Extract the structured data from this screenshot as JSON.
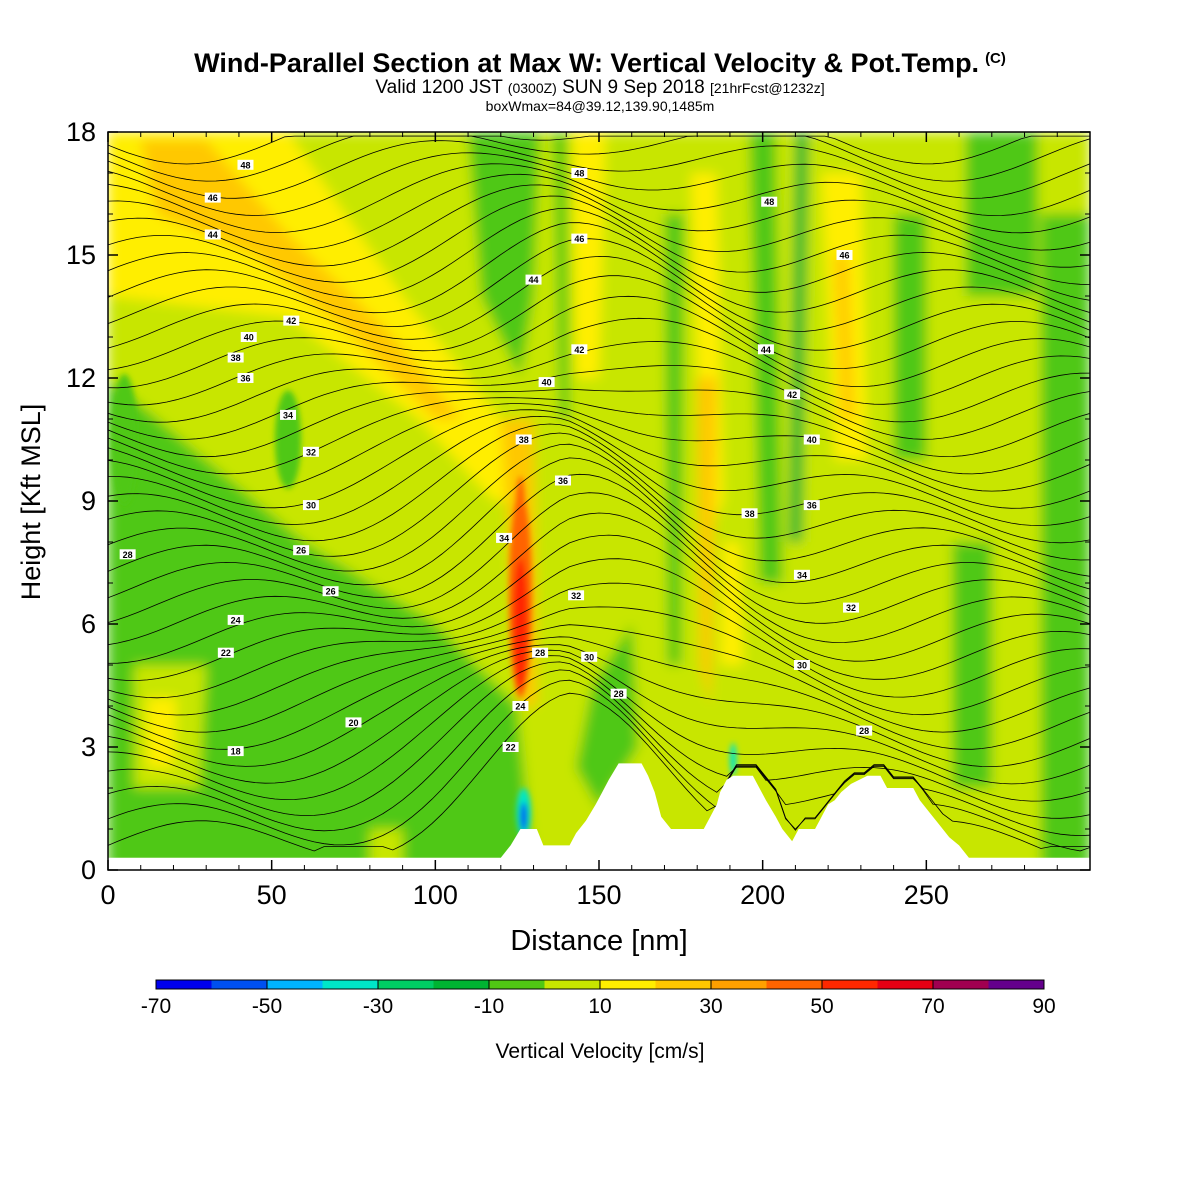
{
  "title": {
    "main": "Wind-Parallel Section at Max W: Vertical Velocity & Pot.Temp.",
    "copyright": "(C)",
    "valid_prefix": "Valid 1200 JST",
    "valid_utc": "(0300Z)",
    "valid_date": "SUN 9 Sep 2018",
    "forecast": "[21hrFcst@1232z]",
    "boxwmax": "boxWmax=84@39.12,139.90,1485m"
  },
  "chart_data": {
    "type": "heatmap",
    "subtype": "cross-section contour",
    "xlabel": "Distance [nm]",
    "ylabel": "Height [Kft MSL]",
    "xlim": [
      0,
      300
    ],
    "ylim": [
      0,
      18
    ],
    "x_ticks": [
      0,
      50,
      100,
      150,
      200,
      250
    ],
    "y_ticks": [
      0,
      3,
      6,
      9,
      12,
      15,
      18
    ],
    "colorbar": {
      "label": "Vertical Velocity [cm/s]",
      "tick_labels": [
        "-70",
        "-50",
        "-30",
        "-10",
        "10",
        "30",
        "50",
        "70",
        "90"
      ],
      "colors": [
        "#0000ee",
        "#0050f0",
        "#00b4ff",
        "#00e6c8",
        "#00cd64",
        "#00b432",
        "#50c814",
        "#c8e600",
        "#ffee00",
        "#ffc800",
        "#ffa000",
        "#ff6400",
        "#ff2800",
        "#e60014",
        "#a00050",
        "#64008c"
      ]
    },
    "terrain_kft": [
      [
        0,
        0.3
      ],
      [
        120,
        0.3
      ],
      [
        123,
        0.6
      ],
      [
        126,
        1.0
      ],
      [
        131,
        1.0
      ],
      [
        133,
        0.6
      ],
      [
        141,
        0.6
      ],
      [
        143,
        0.9
      ],
      [
        146,
        1.2
      ],
      [
        149,
        1.6
      ],
      [
        151,
        1.9
      ],
      [
        153,
        2.2
      ],
      [
        156,
        2.6
      ],
      [
        163,
        2.6
      ],
      [
        165,
        2.3
      ],
      [
        167,
        1.9
      ],
      [
        168,
        1.6
      ],
      [
        169,
        1.3
      ],
      [
        172,
        1.0
      ],
      [
        182,
        1.0
      ],
      [
        184,
        1.3
      ],
      [
        186,
        1.6
      ],
      [
        187,
        1.9
      ],
      [
        189,
        2.2
      ],
      [
        191,
        2.3
      ],
      [
        197,
        2.3
      ],
      [
        199,
        2.0
      ],
      [
        201,
        1.7
      ],
      [
        204,
        1.3
      ],
      [
        206,
        1.0
      ],
      [
        209,
        0.7
      ],
      [
        211,
        1.0
      ],
      [
        216,
        1.0
      ],
      [
        218,
        1.3
      ],
      [
        220,
        1.6
      ],
      [
        222,
        1.7
      ],
      [
        224,
        1.9
      ],
      [
        227,
        2.1
      ],
      [
        232,
        2.3
      ],
      [
        236,
        2.3
      ],
      [
        238,
        2.0
      ],
      [
        246,
        2.0
      ],
      [
        248,
        1.7
      ],
      [
        251,
        1.4
      ],
      [
        254,
        1.1
      ],
      [
        257,
        0.8
      ],
      [
        260,
        0.6
      ],
      [
        263,
        0.3
      ],
      [
        300,
        0.3
      ]
    ],
    "theta_labels": [
      {
        "v": "48",
        "x": 42,
        "y": 17.2
      },
      {
        "v": "46",
        "x": 32,
        "y": 16.4
      },
      {
        "v": "44",
        "x": 32,
        "y": 15.5
      },
      {
        "v": "42",
        "x": 56,
        "y": 13.4
      },
      {
        "v": "40",
        "x": 43,
        "y": 13.0
      },
      {
        "v": "38",
        "x": 39,
        "y": 12.5
      },
      {
        "v": "36",
        "x": 42,
        "y": 12.0
      },
      {
        "v": "34",
        "x": 55,
        "y": 11.1
      },
      {
        "v": "32",
        "x": 62,
        "y": 10.2
      },
      {
        "v": "30",
        "x": 62,
        "y": 8.9
      },
      {
        "v": "28",
        "x": 6,
        "y": 7.7
      },
      {
        "v": "26",
        "x": 59,
        "y": 7.8
      },
      {
        "v": "26",
        "x": 68,
        "y": 6.8
      },
      {
        "v": "24",
        "x": 39,
        "y": 6.1
      },
      {
        "v": "22",
        "x": 36,
        "y": 5.3
      },
      {
        "v": "20",
        "x": 75,
        "y": 3.6
      },
      {
        "v": "18",
        "x": 39,
        "y": 2.9
      },
      {
        "v": "48",
        "x": 144,
        "y": 17.0
      },
      {
        "v": "46",
        "x": 144,
        "y": 15.4
      },
      {
        "v": "44",
        "x": 130,
        "y": 14.4
      },
      {
        "v": "42",
        "x": 144,
        "y": 12.7
      },
      {
        "v": "40",
        "x": 134,
        "y": 11.9
      },
      {
        "v": "38",
        "x": 127,
        "y": 10.5
      },
      {
        "v": "36",
        "x": 139,
        "y": 9.5
      },
      {
        "v": "34",
        "x": 121,
        "y": 8.1
      },
      {
        "v": "32",
        "x": 143,
        "y": 6.7
      },
      {
        "v": "30",
        "x": 147,
        "y": 5.2
      },
      {
        "v": "28",
        "x": 132,
        "y": 5.3
      },
      {
        "v": "28",
        "x": 156,
        "y": 4.3
      },
      {
        "v": "24",
        "x": 126,
        "y": 4.0
      },
      {
        "v": "22",
        "x": 123,
        "y": 3.0
      },
      {
        "v": "48",
        "x": 202,
        "y": 16.3
      },
      {
        "v": "46",
        "x": 225,
        "y": 15.0
      },
      {
        "v": "44",
        "x": 201,
        "y": 12.7
      },
      {
        "v": "42",
        "x": 209,
        "y": 11.6
      },
      {
        "v": "40",
        "x": 215,
        "y": 10.5
      },
      {
        "v": "38",
        "x": 196,
        "y": 8.7
      },
      {
        "v": "36",
        "x": 215,
        "y": 8.9
      },
      {
        "v": "34",
        "x": 212,
        "y": 7.2
      },
      {
        "v": "32",
        "x": 227,
        "y": 6.4
      },
      {
        "v": "30",
        "x": 212,
        "y": 5.0
      },
      {
        "v": "28",
        "x": 231,
        "y": 3.4
      }
    ]
  }
}
